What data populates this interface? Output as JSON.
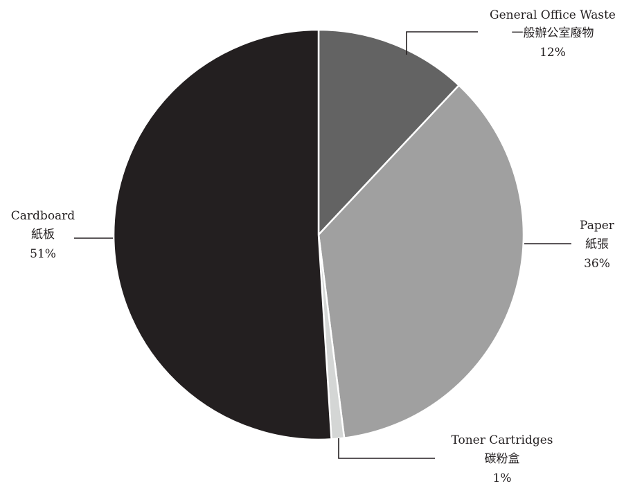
{
  "chart_data": {
    "type": "pie",
    "slices": [
      {
        "label_en": "General Office Waste",
        "label_zh": "一般辦公室廢物",
        "value": 12,
        "display": "12%",
        "color": "#636363"
      },
      {
        "label_en": "Paper",
        "label_zh": "紙張",
        "value": 36,
        "display": "36%",
        "color": "#a0a0a0"
      },
      {
        "label_en": "Toner Cartridges",
        "label_zh": "碳粉盒",
        "value": 1,
        "display": "1%",
        "color": "#d4d6d5"
      },
      {
        "label_en": "Cardboard",
        "label_zh": "紙板",
        "value": 51,
        "display": "51%",
        "color": "#231f20"
      }
    ],
    "start_angle": "12 o'clock",
    "direction": "clockwise",
    "slice_border_color": "#ffffff",
    "leader_line_color": "#231f20"
  }
}
